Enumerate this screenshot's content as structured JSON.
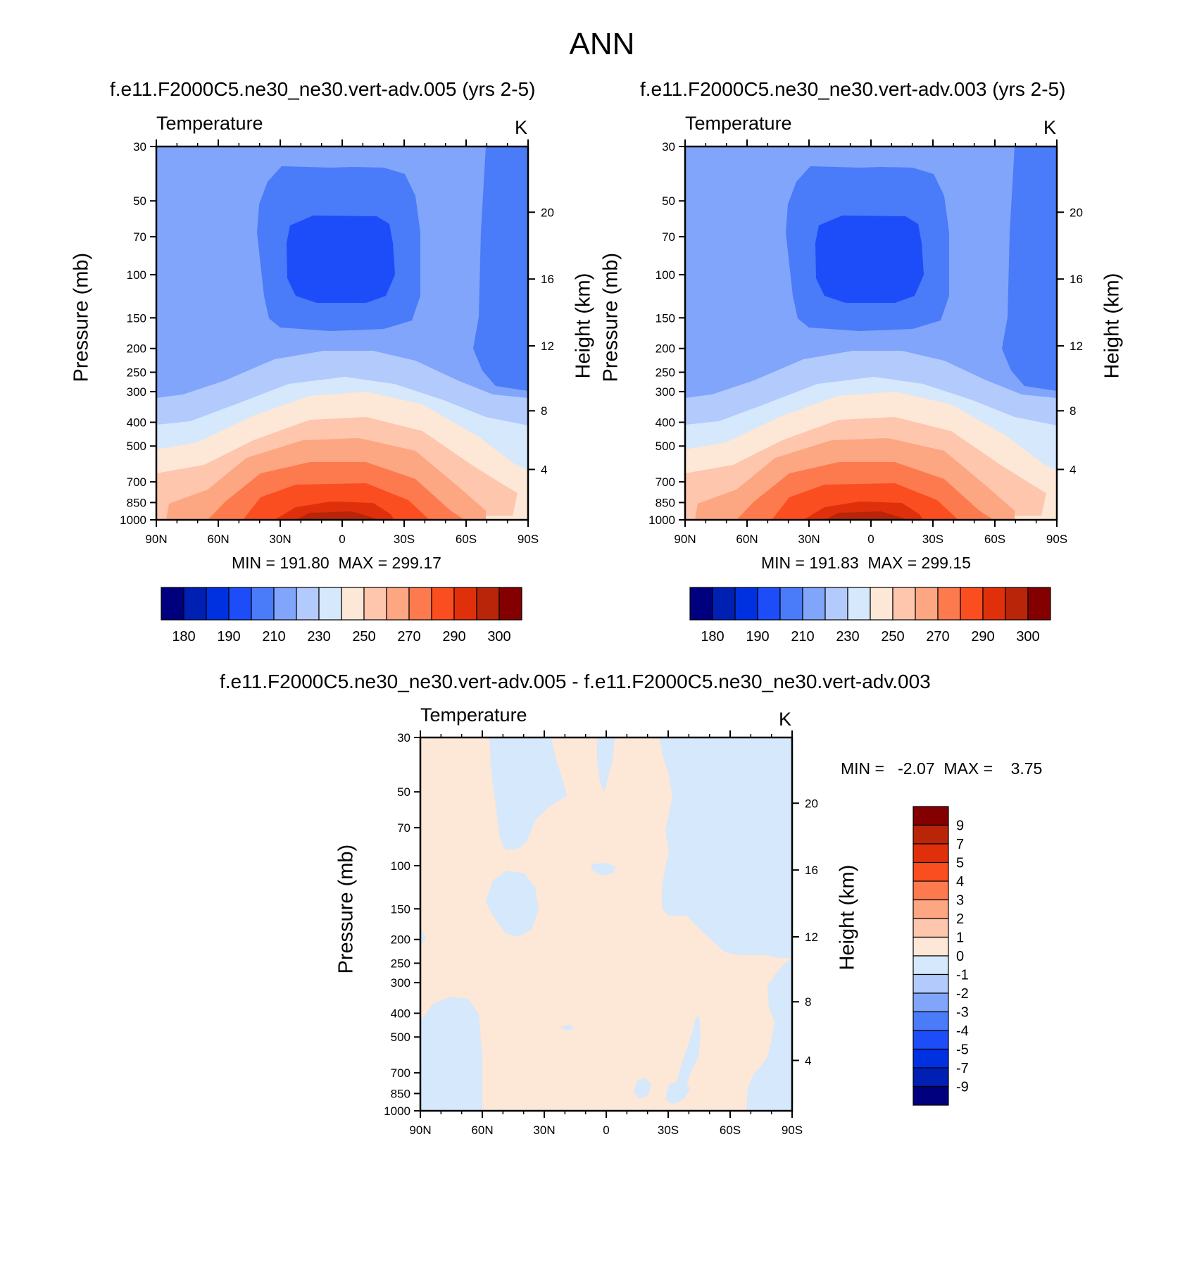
{
  "page_title": "ANN",
  "panels": [
    {
      "title": "f.e11.F2000C5.ne30_ne30.vert-adv.005 (yrs 2-5)",
      "variable": "Temperature",
      "units": "K",
      "minmax": "MIN = 191.80  MAX = 299.17",
      "ylabel_left": "Pressure (mb)",
      "ylabel_right": "Height (km)"
    },
    {
      "title": "f.e11.F2000C5.ne30_ne30.vert-adv.003 (yrs 2-5)",
      "variable": "Temperature",
      "units": "K",
      "minmax": "MIN = 191.83  MAX = 299.15",
      "ylabel_left": "Pressure (mb)",
      "ylabel_right": "Height (km)"
    },
    {
      "title": "f.e11.F2000C5.ne30_ne30.vert-adv.005 - f.e11.F2000C5.ne30_ne30.vert-adv.003",
      "variable": "Temperature",
      "units": "K",
      "minmax": "MIN =   -2.07  MAX =    3.75",
      "ylabel_left": "Pressure (mb)",
      "ylabel_right": "Height (km)"
    }
  ],
  "chart_data": [
    {
      "type": "heatmap",
      "title": "f.e11.F2000C5.ne30_ne30.vert-adv.005 (yrs 2-5)",
      "variable": "Temperature (K)",
      "x_ticks": [
        "90N",
        "60N",
        "30N",
        "0",
        "30S",
        "60S",
        "90S"
      ],
      "y_ticks_pressure_mb": [
        "30",
        "50",
        "70",
        "100",
        "150",
        "200",
        "250",
        "300",
        "400",
        "500",
        "700",
        "850",
        "1000"
      ],
      "y_ticks_height_km": [
        "20",
        "16",
        "12",
        "8",
        "4"
      ],
      "ylim_mb": [
        1000,
        30
      ],
      "y_scale": "log",
      "min": 191.8,
      "max": 299.17,
      "contour_levels": [
        180,
        185,
        190,
        200,
        210,
        220,
        230,
        240,
        250,
        260,
        270,
        280,
        290,
        295,
        300
      ]
    },
    {
      "type": "heatmap",
      "title": "f.e11.F2000C5.ne30_ne30.vert-adv.003 (yrs 2-5)",
      "variable": "Temperature (K)",
      "x_ticks": [
        "90N",
        "60N",
        "30N",
        "0",
        "30S",
        "60S",
        "90S"
      ],
      "y_ticks_pressure_mb": [
        "30",
        "50",
        "70",
        "100",
        "150",
        "200",
        "250",
        "300",
        "400",
        "500",
        "700",
        "850",
        "1000"
      ],
      "y_ticks_height_km": [
        "20",
        "16",
        "12",
        "8",
        "4"
      ],
      "ylim_mb": [
        1000,
        30
      ],
      "y_scale": "log",
      "min": 191.83,
      "max": 299.15,
      "contour_levels": [
        180,
        185,
        190,
        200,
        210,
        220,
        230,
        240,
        250,
        260,
        270,
        280,
        290,
        295,
        300
      ]
    },
    {
      "type": "heatmap",
      "title": "f.e11.F2000C5.ne30_ne30.vert-adv.005 - f.e11.F2000C5.ne30_ne30.vert-adv.003",
      "variable": "Temperature difference (K)",
      "x_ticks": [
        "90N",
        "60N",
        "30N",
        "0",
        "30S",
        "60S",
        "90S"
      ],
      "y_ticks_pressure_mb": [
        "30",
        "50",
        "70",
        "100",
        "150",
        "200",
        "250",
        "300",
        "400",
        "500",
        "700",
        "850",
        "1000"
      ],
      "y_ticks_height_km": [
        "20",
        "16",
        "12",
        "8",
        "4"
      ],
      "ylim_mb": [
        1000,
        30
      ],
      "y_scale": "log",
      "min": -2.07,
      "max": 3.75,
      "contour_levels": [
        -9,
        -7,
        -5,
        -4,
        -3,
        -2,
        -1,
        0,
        1,
        2,
        3,
        4,
        5,
        7,
        9
      ]
    }
  ],
  "colorbars": {
    "absolute": {
      "colors": [
        "#00007f",
        "#0020b4",
        "#0031e0",
        "#1c4df9",
        "#4a7bf8",
        "#80a5fb",
        "#b3cafc",
        "#d5e8fc",
        "#fde7d6",
        "#fdc6ad",
        "#fda682",
        "#fd7a4f",
        "#fb4e20",
        "#e0300b",
        "#b82508",
        "#840000"
      ],
      "labels": [
        "180",
        "190",
        "210",
        "230",
        "250",
        "270",
        "290",
        "300"
      ]
    },
    "difference": {
      "colors": [
        "#840000",
        "#b82508",
        "#e0300b",
        "#fb4e20",
        "#fd7a4f",
        "#fda682",
        "#fdc6ad",
        "#fde7d6",
        "#d5e8fc",
        "#b3cafc",
        "#80a5fb",
        "#4a7bf8",
        "#1c4df9",
        "#0031e0",
        "#0020b4",
        "#00007f"
      ],
      "labels": [
        "9",
        "7",
        "5",
        "4",
        "3",
        "2",
        "1",
        "0",
        "-1",
        "-2",
        "-3",
        "-4",
        "-5",
        "-7",
        "-9"
      ]
    }
  }
}
